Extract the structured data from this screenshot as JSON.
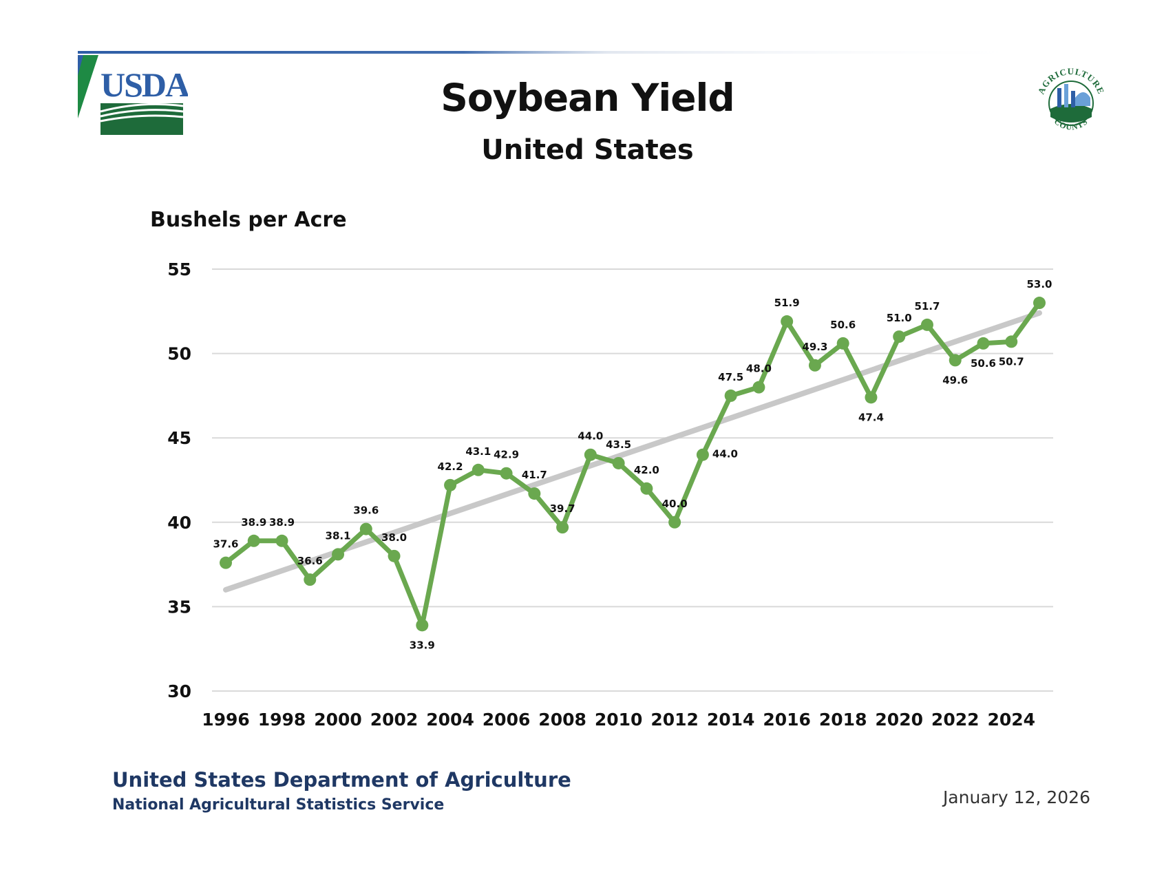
{
  "header": {
    "usda_logo_text": "USDA",
    "ag_logo_text_top": "AGRICULTURE",
    "ag_logo_text_bottom": "COUNTS"
  },
  "footer": {
    "department": "United States Department of Agriculture",
    "service": "National Agricultural Statistics Service",
    "date": "January 12, 2026"
  },
  "colors": {
    "series": "#6aa84f",
    "trend": "#c8c8c8",
    "grid": "#d9d9d9",
    "brand_green": "#1e6b3a",
    "brand_blue": "#2e5ea6",
    "footer_text": "#1f3864"
  },
  "chart_data": {
    "type": "line",
    "title": "Soybean Yield",
    "subtitle": "United States",
    "ylabel": "Bushels per Acre",
    "xlabel": "",
    "ylim": [
      30,
      55
    ],
    "yticks": [
      30,
      35,
      40,
      45,
      50,
      55
    ],
    "xticks": [
      1996,
      1998,
      2000,
      2002,
      2004,
      2006,
      2008,
      2010,
      2012,
      2014,
      2016,
      2018,
      2020,
      2022,
      2024
    ],
    "grid": true,
    "legend": "none",
    "x": [
      1996,
      1997,
      1998,
      1999,
      2000,
      2001,
      2002,
      2003,
      2004,
      2005,
      2006,
      2007,
      2008,
      2009,
      2010,
      2011,
      2012,
      2013,
      2014,
      2015,
      2016,
      2017,
      2018,
      2019,
      2020,
      2021,
      2022,
      2023,
      2024,
      2025
    ],
    "series": [
      {
        "values": [
          37.6,
          38.9,
          38.9,
          36.6,
          38.1,
          39.6,
          38.0,
          33.9,
          42.2,
          43.1,
          42.9,
          41.7,
          39.7,
          44.0,
          43.5,
          42.0,
          40.0,
          44.0,
          47.5,
          48.0,
          51.9,
          49.3,
          50.6,
          47.4,
          51.0,
          51.7,
          49.6,
          50.6,
          50.7,
          53.0
        ],
        "labels": [
          "37.6",
          "38.9",
          "38.9",
          "36.6",
          "38.1",
          "39.6",
          "38.0",
          "33.9",
          "42.2",
          "43.1",
          "42.9",
          "41.7",
          "39.7",
          "44.0",
          "43.5",
          "42.0",
          "40.0",
          "44.0",
          "47.5",
          "48.0",
          "51.9",
          "49.3",
          "50.6",
          "47.4",
          "51.0",
          "51.7",
          "49.6",
          "50.6",
          "50.7",
          "53.0"
        ],
        "label_positions": [
          "above",
          "above",
          "above",
          "above",
          "above",
          "above",
          "above",
          "below",
          "above",
          "above",
          "above",
          "above",
          "above",
          "above",
          "above",
          "above",
          "above",
          "right",
          "above",
          "above",
          "above",
          "above",
          "above",
          "below",
          "above",
          "above",
          "below",
          "below",
          "below",
          "above"
        ]
      }
    ],
    "trendline": {
      "from": [
        1996,
        36.0
      ],
      "to": [
        2025,
        52.4
      ]
    }
  }
}
